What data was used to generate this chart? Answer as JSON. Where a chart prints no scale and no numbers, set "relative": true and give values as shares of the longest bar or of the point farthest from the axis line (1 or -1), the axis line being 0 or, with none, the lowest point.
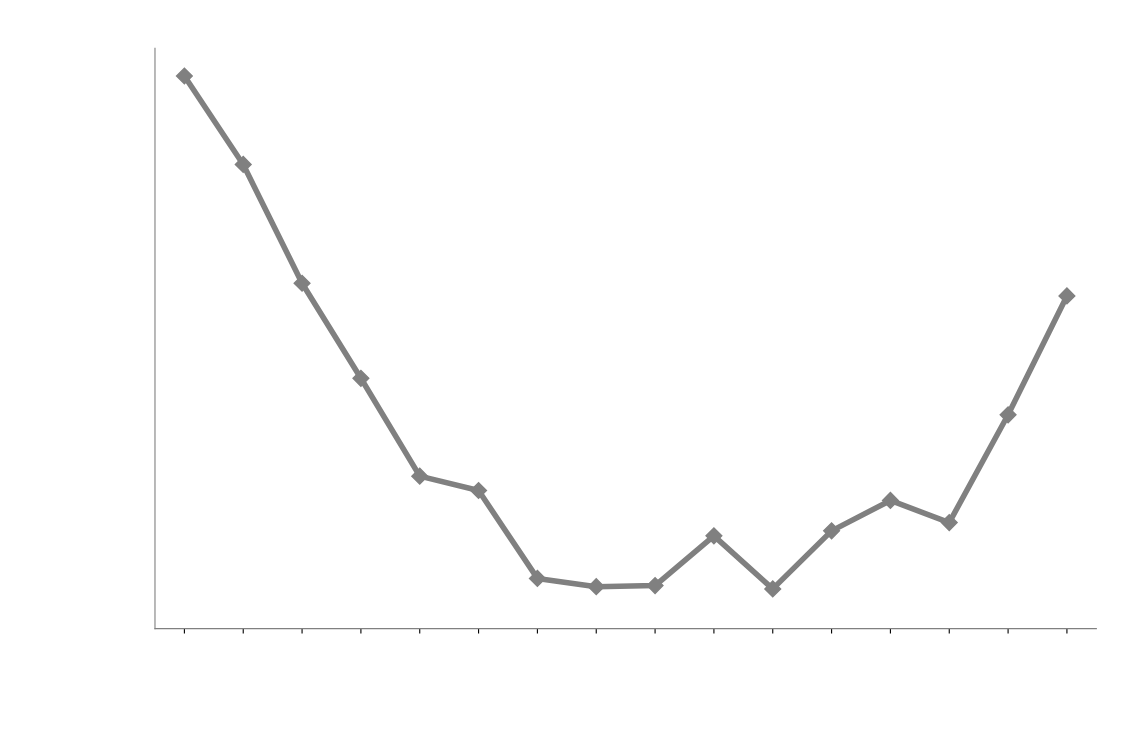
{
  "chart_data": {
    "type": "line",
    "relative": true,
    "marker": "diamond",
    "line_style": "solid",
    "categories": [
      null,
      null,
      null,
      null,
      null,
      null,
      null,
      null,
      null,
      null,
      null,
      null,
      null,
      null,
      null,
      null
    ],
    "series": [
      {
        "color": "#808080",
        "values": [
          1.0,
          0.84,
          0.625,
          0.453,
          0.276,
          0.25,
          0.091,
          0.076,
          0.078,
          0.168,
          0.072,
          0.177,
          0.232,
          0.192,
          0.387,
          0.602
        ]
      }
    ]
  }
}
